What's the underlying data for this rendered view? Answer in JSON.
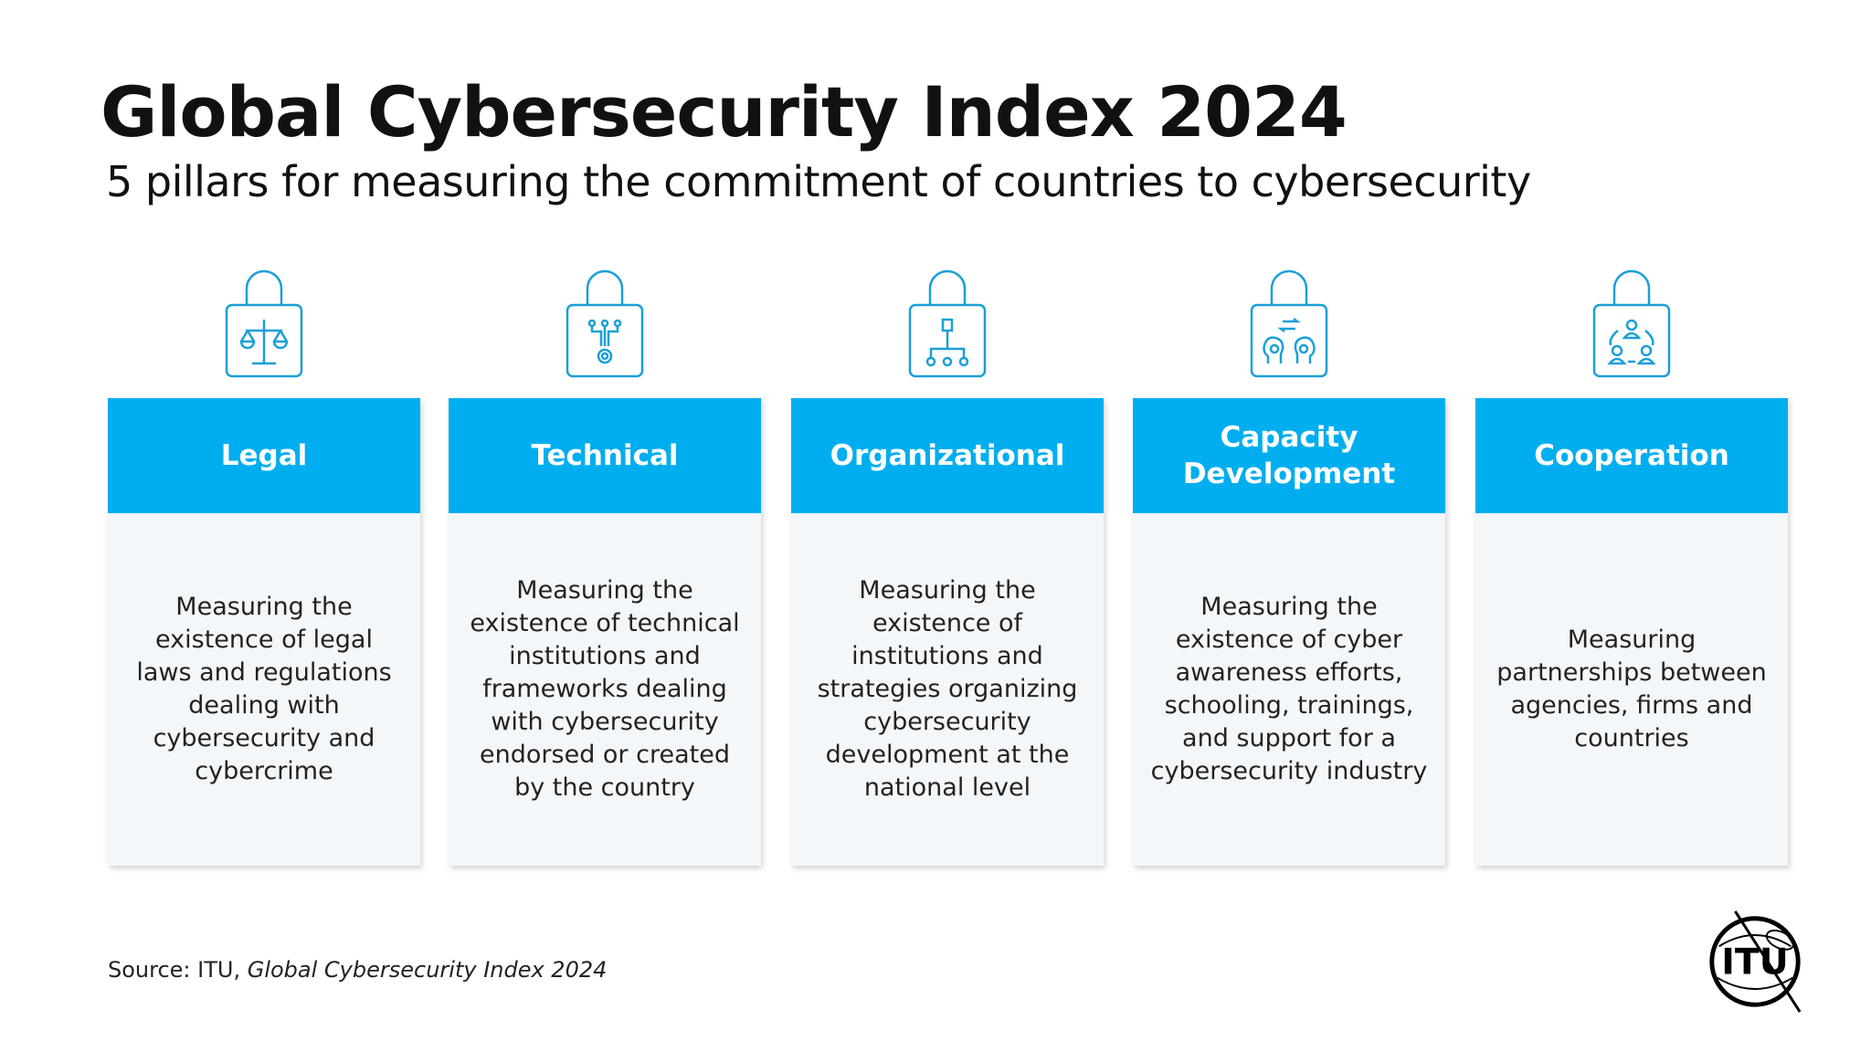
{
  "header": {
    "title": "Global Cybersecurity Index 2024",
    "subtitle": "5 pillars for measuring the commitment of countries to cybersecurity"
  },
  "colors": {
    "accent": "#00aeef",
    "icon_stroke": "#1a9fd8",
    "card_bg": "#f4f7fa"
  },
  "pillars": [
    {
      "title": "Legal",
      "icon": "scales-lock-icon",
      "description": "Measuring the existence of legal laws and regulations dealing with cybersecurity and cybercrime"
    },
    {
      "title": "Technical",
      "icon": "circuit-gear-lock-icon",
      "description": "Measuring the existence of technical institutions and frameworks dealing with cybersecurity endorsed or created by the country"
    },
    {
      "title": "Organizational",
      "icon": "org-chart-lock-icon",
      "description": "Measuring the existence of institutions and strategies organizing cybersecurity development at the national level"
    },
    {
      "title": "Capacity Development",
      "icon": "heads-exchange-lock-icon",
      "description": "Measuring the existence of cyber awareness efforts, schooling, trainings, and support for a cybersecurity industry"
    },
    {
      "title": "Cooperation",
      "icon": "people-network-lock-icon",
      "description": "Measuring partnerships between agencies, firms and countries"
    }
  ],
  "source": {
    "prefix": "Source: ITU, ",
    "title": "Global Cybersecurity Index 2024"
  },
  "logo": {
    "text": "ITU"
  }
}
